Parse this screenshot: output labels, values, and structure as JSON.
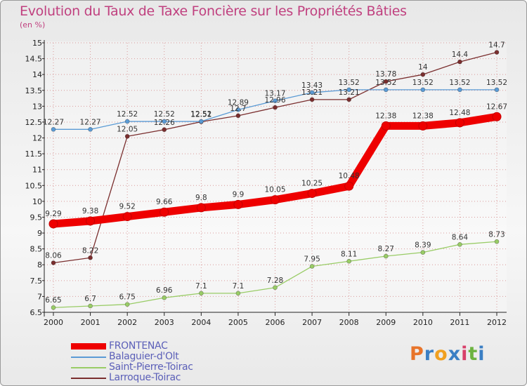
{
  "header": {
    "title": "Evolution du Taux de Taxe Foncière sur les Propriétés Bâties",
    "unit": "(en %)"
  },
  "colors": {
    "title": "#c0407f",
    "legend_text": "#5b5fb8",
    "grid": "#d99a9a"
  },
  "chart_data": {
    "type": "line",
    "title": "Evolution du Taux de Taxe Foncière sur les Propriétés Bâties",
    "ylabel": "(en %)",
    "xlabel": "",
    "categories": [
      "2000",
      "2001",
      "2002",
      "2003",
      "2004",
      "2005",
      "2006",
      "2007",
      "2008",
      "2009",
      "2010",
      "2011",
      "2012"
    ],
    "ylim": [
      6.5,
      15
    ],
    "yticks": [
      "6.5",
      "7",
      "7.5",
      "8",
      "8.5",
      "9",
      "9.5",
      "10",
      "10.5",
      "11",
      "11.5",
      "12",
      "12.5",
      "13",
      "13.5",
      "14",
      "14.5",
      "15"
    ],
    "series": [
      {
        "name": "FRONTENAC",
        "color": "#ee0000",
        "thick": true,
        "values": [
          9.29,
          9.38,
          9.52,
          9.66,
          9.8,
          9.9,
          10.05,
          10.25,
          10.48,
          12.38,
          12.38,
          12.48,
          12.67
        ],
        "labels": [
          "9.29",
          "9.38",
          "9.52",
          "9.66",
          "9.8",
          "9.9",
          "10.05",
          "10.25",
          "10.48",
          "12.38",
          "12.38",
          "12.48",
          "12.67"
        ]
      },
      {
        "name": "Balaguier-d'Olt",
        "color": "#5b9bd5",
        "thick": false,
        "values": [
          12.27,
          12.27,
          12.52,
          12.52,
          12.52,
          12.89,
          13.17,
          13.43,
          13.52,
          13.52,
          13.52,
          13.52,
          13.52
        ],
        "labels": [
          "12.27",
          "12.27",
          "12.52",
          "12.52",
          "12.52",
          "12.89",
          "13.17",
          "13.43",
          "13.52",
          "13.52",
          "13.52",
          "13.52",
          "13.52"
        ]
      },
      {
        "name": "Saint-Pierre-Toirac",
        "color": "#99cc66",
        "thick": false,
        "values": [
          6.65,
          6.7,
          6.75,
          6.96,
          7.1,
          7.1,
          7.28,
          7.95,
          8.11,
          8.27,
          8.39,
          8.64,
          8.73
        ],
        "labels": [
          "6.65",
          "6.7",
          "6.75",
          "6.96",
          "7.1",
          "7.1",
          "7.28",
          "7.95",
          "8.11",
          "8.27",
          "8.39",
          "8.64",
          "8.73"
        ]
      },
      {
        "name": "Larroque-Toirac",
        "color": "#7a2e2e",
        "thick": false,
        "values": [
          8.06,
          8.22,
          12.05,
          12.26,
          12.51,
          12.7,
          12.96,
          13.21,
          13.21,
          13.78,
          14.0,
          14.4,
          14.7
        ],
        "labels": [
          "8.06",
          "8.22",
          "12.05",
          "12.26",
          "12.51",
          "12.7",
          "12.96",
          "13.21",
          "13.21",
          "13.78",
          "14",
          "14.4",
          "14.7"
        ]
      }
    ],
    "legend_position": "bottom-left"
  },
  "legend": [
    "FRONTENAC",
    "Balaguier-d'Olt",
    "Saint-Pierre-Toirac",
    "Larroque-Toirac"
  ],
  "branding": {
    "logo_text": "Proxiti",
    "logo_colors": [
      "#e8742a",
      "#3b7fc4",
      "#f0a020",
      "#3b7fc4",
      "#d8406a",
      "#6cb33f",
      "#3b7fc4"
    ]
  }
}
